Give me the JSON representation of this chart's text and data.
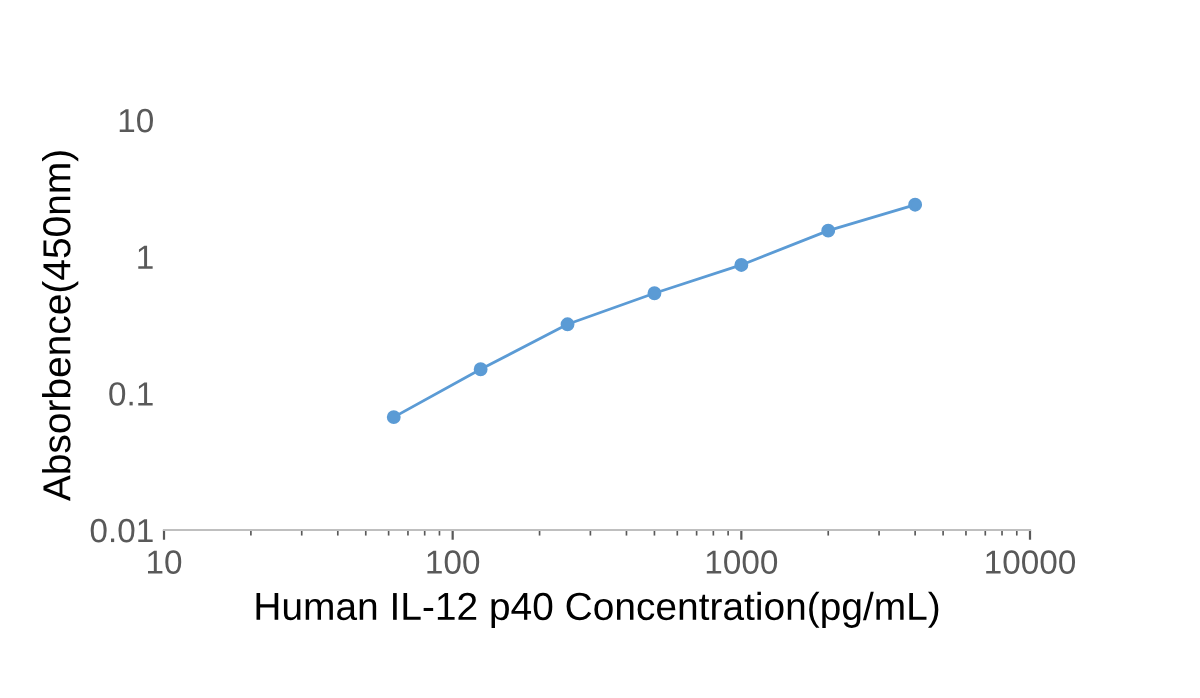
{
  "chart_data": {
    "type": "line",
    "xlabel": "Human IL-12 p40 Concentration(pg/mL)",
    "ylabel": "Absorbence(450nm)",
    "x": [
      62.5,
      125,
      250,
      500,
      1000,
      2000,
      4000
    ],
    "series": [
      {
        "color": "#5b9bd5",
        "values": [
          0.067,
          0.15,
          0.32,
          0.54,
          0.87,
          1.55,
          2.4
        ]
      }
    ],
    "log": "xy",
    "marker": "circle",
    "grid": false,
    "legend": false,
    "xlim": [
      10,
      10000
    ],
    "xticks": [
      10,
      100,
      1000,
      10000
    ],
    "ylim": [
      0.01,
      10
    ],
    "yticks": [
      0.01,
      0.1,
      1,
      10
    ]
  }
}
